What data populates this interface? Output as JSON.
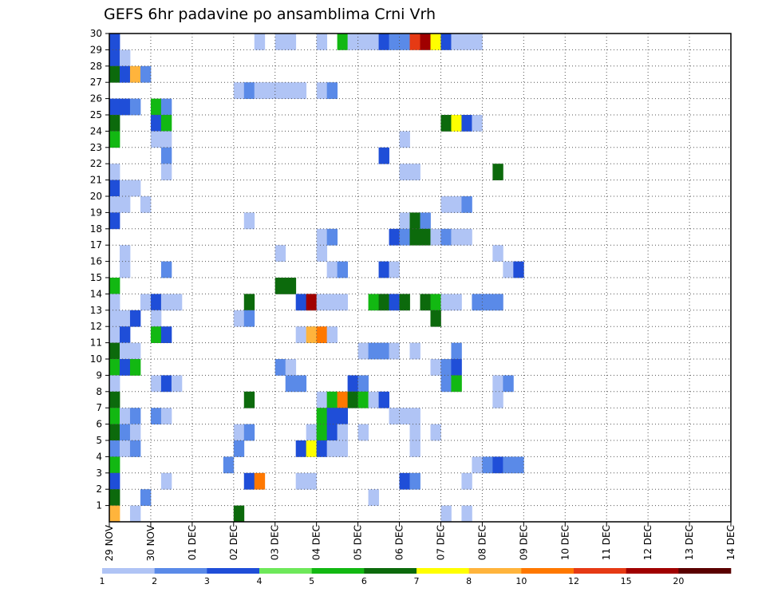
{
  "chart_data": {
    "type": "heatmap",
    "title": "GEFS 6hr padavine po ansamblima Crni Vrh",
    "xlabel": "",
    "ylabel": "",
    "x_ticks": [
      "29 NOV",
      "30 NOV",
      "01 DEC",
      "02 DEC",
      "03 DEC",
      "04 DEC",
      "05 DEC",
      "06 DEC",
      "07 DEC",
      "08 DEC",
      "09 DEC",
      "10 DEC",
      "11 DEC",
      "12 DEC",
      "13 DEC",
      "14 DEC"
    ],
    "y_ticks": [
      "1",
      "2",
      "3",
      "4",
      "5",
      "6",
      "7",
      "8",
      "9",
      "10",
      "11",
      "12",
      "13",
      "14",
      "15",
      "16",
      "17",
      "18",
      "19",
      "20",
      "21",
      "22",
      "23",
      "24",
      "25",
      "26",
      "27",
      "28",
      "29",
      "30"
    ],
    "ylim": [
      0,
      30
    ],
    "steps_per_day": 4,
    "grid": true,
    "grid_style": "dotted",
    "legend_position": "bottom",
    "colorbar": {
      "labels": [
        "1",
        "2",
        "3",
        "4",
        "5",
        "6",
        "7",
        "8",
        "10",
        "12",
        "15",
        "20"
      ],
      "colors": [
        "#b0c4f5",
        "#5a8ae8",
        "#1f4ed8",
        "#6ee85a",
        "#12b812",
        "#0c6a0c",
        "#ffff00",
        "#ffb43c",
        "#ff7800",
        "#e63a14",
        "#a00000",
        "#5a0000"
      ]
    },
    "cells": [
      {
        "member": 30,
        "step": 0,
        "level": 3
      },
      {
        "member": 30,
        "step": 14,
        "level": 1
      },
      {
        "member": 30,
        "step": 16,
        "level": 1
      },
      {
        "member": 30,
        "step": 17,
        "level": 1
      },
      {
        "member": 30,
        "step": 20,
        "level": 1
      },
      {
        "member": 30,
        "step": 22,
        "level": 5
      },
      {
        "member": 30,
        "step": 23,
        "level": 1
      },
      {
        "member": 30,
        "step": 24,
        "level": 1
      },
      {
        "member": 30,
        "step": 25,
        "level": 1
      },
      {
        "member": 30,
        "step": 26,
        "level": 3
      },
      {
        "member": 30,
        "step": 27,
        "level": 2
      },
      {
        "member": 30,
        "step": 28,
        "level": 2
      },
      {
        "member": 30,
        "step": 29,
        "level": 10
      },
      {
        "member": 30,
        "step": 30,
        "level": 11
      },
      {
        "member": 30,
        "step": 31,
        "level": 7
      },
      {
        "member": 30,
        "step": 32,
        "level": 3
      },
      {
        "member": 30,
        "step": 33,
        "level": 1
      },
      {
        "member": 30,
        "step": 34,
        "level": 1
      },
      {
        "member": 30,
        "step": 35,
        "level": 1
      },
      {
        "member": 29,
        "step": 0,
        "level": 3
      },
      {
        "member": 29,
        "step": 1,
        "level": 1
      },
      {
        "member": 28,
        "step": 0,
        "level": 6
      },
      {
        "member": 28,
        "step": 1,
        "level": 3
      },
      {
        "member": 28,
        "step": 2,
        "level": 8
      },
      {
        "member": 28,
        "step": 3,
        "level": 2
      },
      {
        "member": 27,
        "step": 12,
        "level": 1
      },
      {
        "member": 27,
        "step": 13,
        "level": 2
      },
      {
        "member": 27,
        "step": 14,
        "level": 1
      },
      {
        "member": 27,
        "step": 15,
        "level": 1
      },
      {
        "member": 27,
        "step": 16,
        "level": 1
      },
      {
        "member": 27,
        "step": 17,
        "level": 1
      },
      {
        "member": 27,
        "step": 18,
        "level": 1
      },
      {
        "member": 27,
        "step": 20,
        "level": 1
      },
      {
        "member": 27,
        "step": 21,
        "level": 2
      },
      {
        "member": 26,
        "step": 0,
        "level": 3
      },
      {
        "member": 26,
        "step": 1,
        "level": 3
      },
      {
        "member": 26,
        "step": 2,
        "level": 2
      },
      {
        "member": 26,
        "step": 4,
        "level": 5
      },
      {
        "member": 26,
        "step": 5,
        "level": 2
      },
      {
        "member": 25,
        "step": 0,
        "level": 6
      },
      {
        "member": 25,
        "step": 4,
        "level": 3
      },
      {
        "member": 25,
        "step": 5,
        "level": 5
      },
      {
        "member": 25,
        "step": 32,
        "level": 6
      },
      {
        "member": 25,
        "step": 33,
        "level": 7
      },
      {
        "member": 25,
        "step": 34,
        "level": 3
      },
      {
        "member": 25,
        "step": 35,
        "level": 1
      },
      {
        "member": 24,
        "step": 0,
        "level": 5
      },
      {
        "member": 24,
        "step": 4,
        "level": 1
      },
      {
        "member": 24,
        "step": 5,
        "level": 1
      },
      {
        "member": 24,
        "step": 28,
        "level": 1
      },
      {
        "member": 23,
        "step": 5,
        "level": 2
      },
      {
        "member": 23,
        "step": 26,
        "level": 3
      },
      {
        "member": 22,
        "step": 0,
        "level": 1
      },
      {
        "member": 22,
        "step": 5,
        "level": 1
      },
      {
        "member": 22,
        "step": 28,
        "level": 1
      },
      {
        "member": 22,
        "step": 29,
        "level": 1
      },
      {
        "member": 22,
        "step": 37,
        "level": 6
      },
      {
        "member": 21,
        "step": 0,
        "level": 3
      },
      {
        "member": 21,
        "step": 1,
        "level": 1
      },
      {
        "member": 21,
        "step": 2,
        "level": 1
      },
      {
        "member": 20,
        "step": 0,
        "level": 1
      },
      {
        "member": 20,
        "step": 1,
        "level": 1
      },
      {
        "member": 20,
        "step": 3,
        "level": 1
      },
      {
        "member": 20,
        "step": 32,
        "level": 1
      },
      {
        "member": 20,
        "step": 33,
        "level": 1
      },
      {
        "member": 20,
        "step": 34,
        "level": 2
      },
      {
        "member": 19,
        "step": 0,
        "level": 3
      },
      {
        "member": 19,
        "step": 13,
        "level": 1
      },
      {
        "member": 19,
        "step": 28,
        "level": 1
      },
      {
        "member": 19,
        "step": 29,
        "level": 6
      },
      {
        "member": 19,
        "step": 30,
        "level": 2
      },
      {
        "member": 18,
        "step": 20,
        "level": 1
      },
      {
        "member": 18,
        "step": 21,
        "level": 2
      },
      {
        "member": 18,
        "step": 27,
        "level": 3
      },
      {
        "member": 18,
        "step": 28,
        "level": 2
      },
      {
        "member": 18,
        "step": 29,
        "level": 6
      },
      {
        "member": 18,
        "step": 30,
        "level": 6
      },
      {
        "member": 18,
        "step": 31,
        "level": 1
      },
      {
        "member": 18,
        "step": 32,
        "level": 2
      },
      {
        "member": 18,
        "step": 33,
        "level": 1
      },
      {
        "member": 18,
        "step": 34,
        "level": 1
      },
      {
        "member": 17,
        "step": 1,
        "level": 1
      },
      {
        "member": 17,
        "step": 16,
        "level": 1
      },
      {
        "member": 17,
        "step": 20,
        "level": 1
      },
      {
        "member": 17,
        "step": 37,
        "level": 1
      },
      {
        "member": 16,
        "step": 1,
        "level": 1
      },
      {
        "member": 16,
        "step": 5,
        "level": 2
      },
      {
        "member": 16,
        "step": 21,
        "level": 1
      },
      {
        "member": 16,
        "step": 22,
        "level": 2
      },
      {
        "member": 16,
        "step": 26,
        "level": 3
      },
      {
        "member": 16,
        "step": 27,
        "level": 1
      },
      {
        "member": 16,
        "step": 38,
        "level": 1
      },
      {
        "member": 16,
        "step": 39,
        "level": 3
      },
      {
        "member": 15,
        "step": 0,
        "level": 5
      },
      {
        "member": 15,
        "step": 16,
        "level": 6
      },
      {
        "member": 15,
        "step": 17,
        "level": 6
      },
      {
        "member": 14,
        "step": 0,
        "level": 1
      },
      {
        "member": 14,
        "step": 3,
        "level": 1
      },
      {
        "member": 14,
        "step": 4,
        "level": 3
      },
      {
        "member": 14,
        "step": 5,
        "level": 1
      },
      {
        "member": 14,
        "step": 6,
        "level": 1
      },
      {
        "member": 14,
        "step": 13,
        "level": 6
      },
      {
        "member": 14,
        "step": 18,
        "level": 3
      },
      {
        "member": 14,
        "step": 19,
        "level": 11
      },
      {
        "member": 14,
        "step": 20,
        "level": 1
      },
      {
        "member": 14,
        "step": 21,
        "level": 1
      },
      {
        "member": 14,
        "step": 22,
        "level": 1
      },
      {
        "member": 14,
        "step": 25,
        "level": 5
      },
      {
        "member": 14,
        "step": 26,
        "level": 6
      },
      {
        "member": 14,
        "step": 27,
        "level": 3
      },
      {
        "member": 14,
        "step": 28,
        "level": 6
      },
      {
        "member": 14,
        "step": 30,
        "level": 6
      },
      {
        "member": 14,
        "step": 31,
        "level": 5
      },
      {
        "member": 14,
        "step": 32,
        "level": 1
      },
      {
        "member": 14,
        "step": 33,
        "level": 1
      },
      {
        "member": 14,
        "step": 35,
        "level": 2
      },
      {
        "member": 14,
        "step": 36,
        "level": 2
      },
      {
        "member": 14,
        "step": 37,
        "level": 2
      },
      {
        "member": 13,
        "step": 0,
        "level": 1
      },
      {
        "member": 13,
        "step": 1,
        "level": 1
      },
      {
        "member": 13,
        "step": 2,
        "level": 3
      },
      {
        "member": 13,
        "step": 4,
        "level": 1
      },
      {
        "member": 13,
        "step": 12,
        "level": 1
      },
      {
        "member": 13,
        "step": 13,
        "level": 2
      },
      {
        "member": 13,
        "step": 31,
        "level": 6
      },
      {
        "member": 12,
        "step": 0,
        "level": 1
      },
      {
        "member": 12,
        "step": 1,
        "level": 3
      },
      {
        "member": 12,
        "step": 4,
        "level": 5
      },
      {
        "member": 12,
        "step": 5,
        "level": 3
      },
      {
        "member": 12,
        "step": 18,
        "level": 1
      },
      {
        "member": 12,
        "step": 19,
        "level": 8
      },
      {
        "member": 12,
        "step": 20,
        "level": 9
      },
      {
        "member": 12,
        "step": 21,
        "level": 1
      },
      {
        "member": 11,
        "step": 0,
        "level": 6
      },
      {
        "member": 11,
        "step": 1,
        "level": 1
      },
      {
        "member": 11,
        "step": 2,
        "level": 1
      },
      {
        "member": 11,
        "step": 24,
        "level": 1
      },
      {
        "member": 11,
        "step": 25,
        "level": 2
      },
      {
        "member": 11,
        "step": 26,
        "level": 2
      },
      {
        "member": 11,
        "step": 27,
        "level": 1
      },
      {
        "member": 11,
        "step": 29,
        "level": 1
      },
      {
        "member": 11,
        "step": 33,
        "level": 2
      },
      {
        "member": 10,
        "step": 0,
        "level": 5
      },
      {
        "member": 10,
        "step": 1,
        "level": 3
      },
      {
        "member": 10,
        "step": 2,
        "level": 5
      },
      {
        "member": 10,
        "step": 16,
        "level": 2
      },
      {
        "member": 10,
        "step": 17,
        "level": 1
      },
      {
        "member": 10,
        "step": 31,
        "level": 1
      },
      {
        "member": 10,
        "step": 32,
        "level": 2
      },
      {
        "member": 10,
        "step": 33,
        "level": 3
      },
      {
        "member": 9,
        "step": 0,
        "level": 1
      },
      {
        "member": 9,
        "step": 4,
        "level": 1
      },
      {
        "member": 9,
        "step": 5,
        "level": 3
      },
      {
        "member": 9,
        "step": 6,
        "level": 1
      },
      {
        "member": 9,
        "step": 17,
        "level": 2
      },
      {
        "member": 9,
        "step": 18,
        "level": 2
      },
      {
        "member": 9,
        "step": 23,
        "level": 3
      },
      {
        "member": 9,
        "step": 24,
        "level": 2
      },
      {
        "member": 9,
        "step": 32,
        "level": 2
      },
      {
        "member": 9,
        "step": 33,
        "level": 5
      },
      {
        "member": 9,
        "step": 37,
        "level": 1
      },
      {
        "member": 9,
        "step": 38,
        "level": 2
      },
      {
        "member": 8,
        "step": 0,
        "level": 6
      },
      {
        "member": 8,
        "step": 13,
        "level": 6
      },
      {
        "member": 8,
        "step": 20,
        "level": 1
      },
      {
        "member": 8,
        "step": 21,
        "level": 5
      },
      {
        "member": 8,
        "step": 22,
        "level": 9
      },
      {
        "member": 8,
        "step": 23,
        "level": 6
      },
      {
        "member": 8,
        "step": 24,
        "level": 5
      },
      {
        "member": 8,
        "step": 25,
        "level": 1
      },
      {
        "member": 8,
        "step": 26,
        "level": 3
      },
      {
        "member": 8,
        "step": 37,
        "level": 1
      },
      {
        "member": 7,
        "step": 0,
        "level": 5
      },
      {
        "member": 7,
        "step": 1,
        "level": 1
      },
      {
        "member": 7,
        "step": 2,
        "level": 2
      },
      {
        "member": 7,
        "step": 4,
        "level": 2
      },
      {
        "member": 7,
        "step": 5,
        "level": 1
      },
      {
        "member": 7,
        "step": 20,
        "level": 5
      },
      {
        "member": 7,
        "step": 21,
        "level": 3
      },
      {
        "member": 7,
        "step": 22,
        "level": 3
      },
      {
        "member": 7,
        "step": 27,
        "level": 1
      },
      {
        "member": 7,
        "step": 28,
        "level": 1
      },
      {
        "member": 7,
        "step": 29,
        "level": 1
      },
      {
        "member": 6,
        "step": 0,
        "level": 6
      },
      {
        "member": 6,
        "step": 1,
        "level": 2
      },
      {
        "member": 6,
        "step": 2,
        "level": 1
      },
      {
        "member": 6,
        "step": 12,
        "level": 1
      },
      {
        "member": 6,
        "step": 13,
        "level": 2
      },
      {
        "member": 6,
        "step": 19,
        "level": 1
      },
      {
        "member": 6,
        "step": 20,
        "level": 5
      },
      {
        "member": 6,
        "step": 21,
        "level": 3
      },
      {
        "member": 6,
        "step": 22,
        "level": 1
      },
      {
        "member": 6,
        "step": 24,
        "level": 1
      },
      {
        "member": 6,
        "step": 29,
        "level": 1
      },
      {
        "member": 6,
        "step": 31,
        "level": 1
      },
      {
        "member": 5,
        "step": 0,
        "level": 2
      },
      {
        "member": 5,
        "step": 1,
        "level": 1
      },
      {
        "member": 5,
        "step": 2,
        "level": 2
      },
      {
        "member": 5,
        "step": 12,
        "level": 2
      },
      {
        "member": 5,
        "step": 18,
        "level": 3
      },
      {
        "member": 5,
        "step": 19,
        "level": 7
      },
      {
        "member": 5,
        "step": 20,
        "level": 3
      },
      {
        "member": 5,
        "step": 21,
        "level": 1
      },
      {
        "member": 5,
        "step": 22,
        "level": 1
      },
      {
        "member": 5,
        "step": 29,
        "level": 1
      },
      {
        "member": 4,
        "step": 0,
        "level": 5
      },
      {
        "member": 4,
        "step": 11,
        "level": 2
      },
      {
        "member": 4,
        "step": 35,
        "level": 1
      },
      {
        "member": 4,
        "step": 36,
        "level": 2
      },
      {
        "member": 4,
        "step": 37,
        "level": 3
      },
      {
        "member": 4,
        "step": 38,
        "level": 2
      },
      {
        "member": 4,
        "step": 39,
        "level": 2
      },
      {
        "member": 3,
        "step": 0,
        "level": 3
      },
      {
        "member": 3,
        "step": 5,
        "level": 1
      },
      {
        "member": 3,
        "step": 13,
        "level": 3
      },
      {
        "member": 3,
        "step": 14,
        "level": 9
      },
      {
        "member": 3,
        "step": 18,
        "level": 1
      },
      {
        "member": 3,
        "step": 19,
        "level": 1
      },
      {
        "member": 3,
        "step": 28,
        "level": 3
      },
      {
        "member": 3,
        "step": 29,
        "level": 2
      },
      {
        "member": 3,
        "step": 34,
        "level": 1
      },
      {
        "member": 2,
        "step": 0,
        "level": 6
      },
      {
        "member": 2,
        "step": 3,
        "level": 2
      },
      {
        "member": 2,
        "step": 25,
        "level": 1
      },
      {
        "member": 1,
        "step": 0,
        "level": 8
      },
      {
        "member": 1,
        "step": 2,
        "level": 1
      },
      {
        "member": 1,
        "step": 12,
        "level": 6
      },
      {
        "member": 1,
        "step": 32,
        "level": 1
      },
      {
        "member": 1,
        "step": 34,
        "level": 1
      }
    ]
  }
}
